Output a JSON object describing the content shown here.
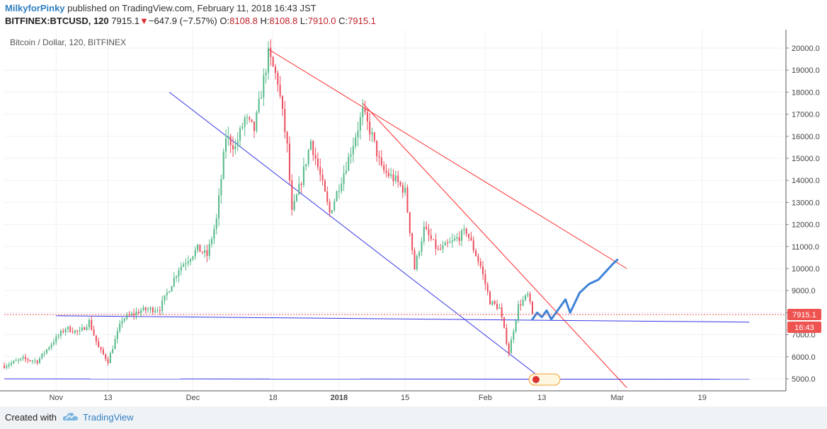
{
  "header": {
    "author": "MilkyforPinky",
    "published": "published on TradingView.com, February 11, 2018 16:43 JST",
    "symbol": "BITFINEX:BTCUSD, 120",
    "last": "7915.1",
    "change": "−647.9 (−7.57%)",
    "o_label": "O:",
    "o_value": "8108.8",
    "h_label": "H:",
    "h_value": "8108.8",
    "l_label": "L:",
    "l_value": "7910.0",
    "c_label": "C:",
    "c_value": "7915.1"
  },
  "chart": {
    "legend": "Bitcoin / Dollar, 120, BITFINEX",
    "price_label": "7915.1",
    "time_label": "16:43",
    "colors": {
      "up": "#53b987",
      "down": "#eb4d5c",
      "red_line": "#ff2a2a",
      "blue_line": "#3535e6",
      "forecast": "#3f83d8",
      "price_tag": "#ef5350"
    }
  },
  "chart_data": {
    "type": "candlestick",
    "title": "Bitcoin / Dollar, 120, BITFINEX",
    "x_ticks": [
      "Nov",
      "13",
      "Dec",
      "18",
      "2018",
      "15",
      "Feb",
      "13",
      "Mar",
      "19"
    ],
    "y_ticks": [
      "5000.0",
      "6000.0",
      "7000.0",
      "8000.0",
      "9000.0",
      "10000.0",
      "11000.0",
      "12000.0",
      "13000.0",
      "14000.0",
      "15000.0",
      "16000.0",
      "17000.0",
      "18000.0",
      "19000.0",
      "20000.0"
    ],
    "ylim": [
      4550,
      21000
    ],
    "x_range": [
      "2017-10-22",
      "2018-04-05"
    ],
    "last_price": 7915.1,
    "price_path": [
      [
        "2017-10-22",
        5600
      ],
      [
        "2017-10-26",
        5900
      ],
      [
        "2017-10-29",
        5800
      ],
      [
        "2017-11-01",
        6600
      ],
      [
        "2017-11-04",
        7300
      ],
      [
        "2017-11-07",
        7100
      ],
      [
        "2017-11-09",
        7600
      ],
      [
        "2017-11-11",
        6400
      ],
      [
        "2017-11-13",
        5800
      ],
      [
        "2017-11-16",
        7700
      ],
      [
        "2017-11-20",
        8100
      ],
      [
        "2017-11-24",
        8200
      ],
      [
        "2017-11-28",
        10000
      ],
      [
        "2017-12-02",
        10900
      ],
      [
        "2017-12-04",
        10600
      ],
      [
        "2017-12-06",
        12200
      ],
      [
        "2017-12-08",
        16000
      ],
      [
        "2017-12-10",
        15500
      ],
      [
        "2017-12-12",
        16800
      ],
      [
        "2017-12-14",
        16300
      ],
      [
        "2017-12-17",
        19700
      ],
      [
        "2017-12-19",
        18500
      ],
      [
        "2017-12-21",
        15500
      ],
      [
        "2017-12-22",
        12500
      ],
      [
        "2017-12-24",
        14000
      ],
      [
        "2017-12-26",
        15800
      ],
      [
        "2017-12-28",
        14200
      ],
      [
        "2017-12-30",
        12500
      ],
      [
        "2018-01-03",
        15000
      ],
      [
        "2018-01-06",
        17100
      ],
      [
        "2018-01-08",
        16000
      ],
      [
        "2018-01-10",
        14500
      ],
      [
        "2018-01-13",
        14000
      ],
      [
        "2018-01-15",
        13500
      ],
      [
        "2018-01-17",
        10000
      ],
      [
        "2018-01-19",
        11800
      ],
      [
        "2018-01-22",
        10800
      ],
      [
        "2018-01-25",
        11200
      ],
      [
        "2018-01-28",
        11700
      ],
      [
        "2018-01-31",
        10100
      ],
      [
        "2018-02-02",
        8500
      ],
      [
        "2018-02-04",
        8200
      ],
      [
        "2018-02-06",
        6200
      ],
      [
        "2018-02-08",
        8300
      ],
      [
        "2018-02-10",
        8800
      ],
      [
        "2018-02-11",
        7915
      ]
    ],
    "trend_lines": [
      {
        "color": "red",
        "from": [
          "2017-12-17",
          19950
        ],
        "to": [
          "2018-03-03",
          10000
        ]
      },
      {
        "color": "red",
        "from": [
          "2018-01-06",
          17500
        ],
        "to": [
          "2018-03-03",
          4600
        ]
      },
      {
        "color": "blue",
        "from": [
          "2017-11-26",
          18000
        ],
        "to": [
          "2018-02-13",
          5000
        ]
      },
      {
        "color": "blue",
        "from": [
          "2017-11-02",
          7860
        ],
        "to": [
          "2018-03-29",
          7570
        ]
      },
      {
        "color": "blue",
        "from": [
          "2017-10-22",
          5000
        ],
        "to": [
          "2018-03-29",
          4980
        ]
      }
    ],
    "forecast_path": [
      [
        "2018-02-11",
        7700
      ],
      [
        "2018-02-12",
        8000
      ],
      [
        "2018-02-13",
        7800
      ],
      [
        "2018-02-14",
        8100
      ],
      [
        "2018-02-15",
        7700
      ],
      [
        "2018-02-18",
        8600
      ],
      [
        "2018-02-19",
        8000
      ],
      [
        "2018-02-21",
        8900
      ],
      [
        "2018-02-23",
        9300
      ],
      [
        "2018-02-25",
        9500
      ],
      [
        "2018-02-28",
        10200
      ],
      [
        "2018-03-01",
        10400
      ]
    ]
  },
  "footer": {
    "created_with": "Created with",
    "brand": "TradingView"
  }
}
